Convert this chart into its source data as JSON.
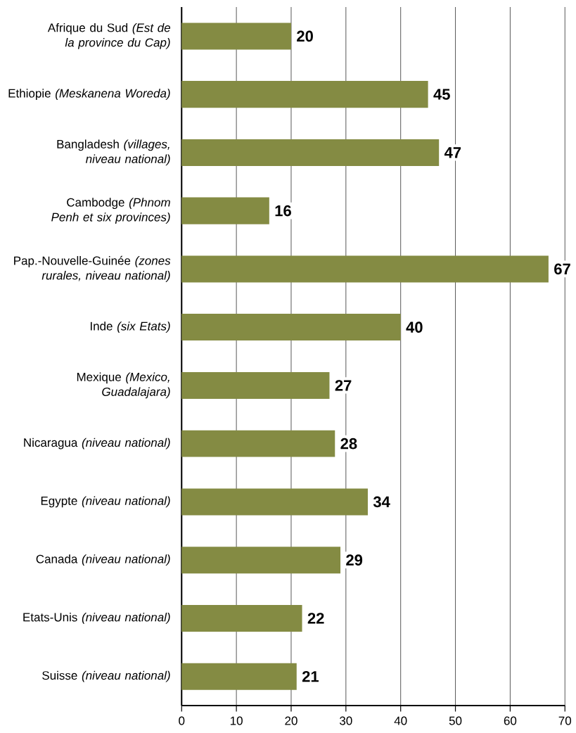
{
  "chart_data": {
    "type": "bar",
    "orientation": "horizontal",
    "categories": [
      "Afrique du Sud *(Est de la province du Cap)*",
      "Ethiopie *(Meskanena Woreda)*",
      "Bangladesh *(villages, niveau national)*",
      "Cambodge *(Phnom Penh et six provinces)*",
      "Pap.-Nouvelle-Guinée *(zones rurales, niveau national)*",
      "Inde *(six Etats)*",
      "Mexique *(Mexico, Guadalajara)*",
      "Nicaragua *(niveau national)*",
      "Egypte *(niveau national)*",
      "Canada *(niveau national)*",
      "Etats-Unis *(niveau national)*",
      "Suisse *(niveau national)*"
    ],
    "values": [
      20,
      45,
      47,
      16,
      67,
      40,
      27,
      28,
      34,
      29,
      22,
      21
    ],
    "color": "#848b43",
    "data_labels": true,
    "grid": "x",
    "xlim": [
      0,
      70
    ],
    "xticks": [
      0,
      10,
      20,
      30,
      40,
      50,
      60,
      70
    ]
  }
}
